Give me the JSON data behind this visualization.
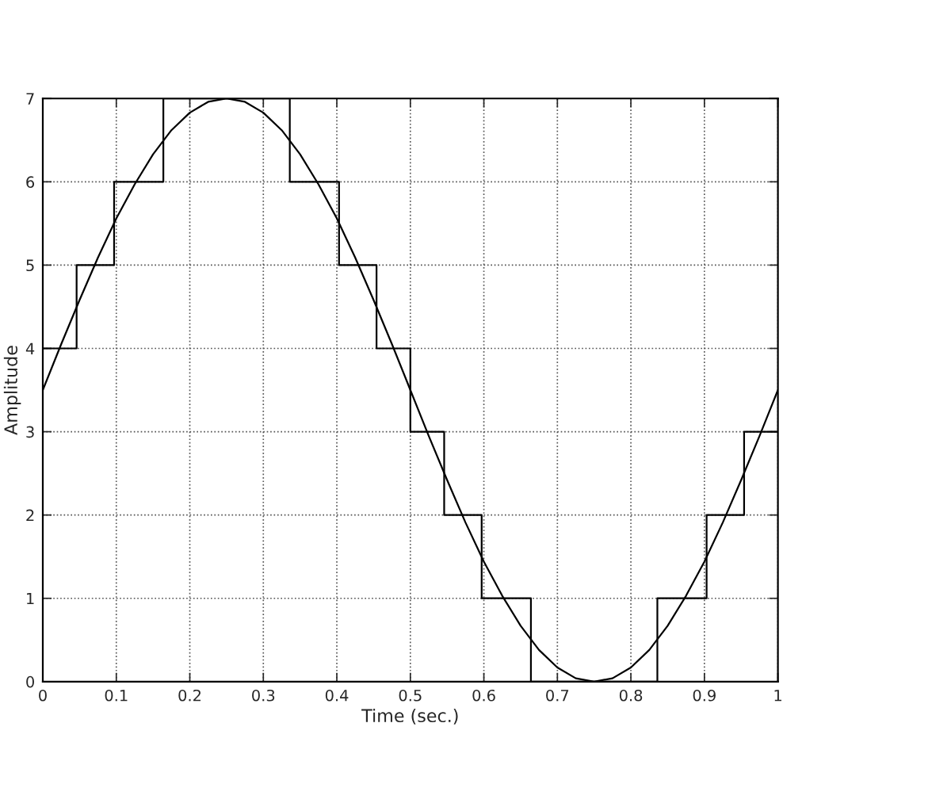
{
  "chart_data": {
    "type": "line",
    "xlabel": "Time (sec.)",
    "ylabel": "Amplitude",
    "xlim": [
      0,
      1
    ],
    "ylim": [
      0,
      7
    ],
    "xticks": [
      0,
      0.1,
      0.2,
      0.3,
      0.4,
      0.5,
      0.6,
      0.7,
      0.8,
      0.9,
      1
    ],
    "yticks": [
      0,
      1,
      2,
      3,
      4,
      5,
      6,
      7
    ],
    "grid": true,
    "marker": "none",
    "series": [
      {
        "color": "#000000",
        "x": [
          0,
          0.025,
          0.05,
          0.075,
          0.1,
          0.125,
          0.15,
          0.175,
          0.2,
          0.225,
          0.25,
          0.275,
          0.3,
          0.325,
          0.35,
          0.375,
          0.4,
          0.425,
          0.45,
          0.475,
          0.5,
          0.525,
          0.55,
          0.575,
          0.6,
          0.625,
          0.65,
          0.675,
          0.7,
          0.725,
          0.75,
          0.775,
          0.8,
          0.825,
          0.85,
          0.875,
          0.9,
          0.925,
          0.95,
          0.975,
          1
        ],
        "values": [
          3.5,
          4.05,
          4.58,
          5.09,
          5.56,
          5.97,
          6.33,
          6.62,
          6.83,
          6.96,
          7.0,
          6.96,
          6.83,
          6.62,
          6.33,
          5.97,
          5.56,
          5.09,
          4.58,
          4.05,
          3.5,
          2.95,
          2.42,
          1.91,
          1.44,
          1.03,
          0.67,
          0.38,
          0.17,
          0.04,
          0,
          0.04,
          0.17,
          0.38,
          0.67,
          1.03,
          1.44,
          1.91,
          2.42,
          2.95,
          3.5
        ]
      },
      {
        "type": "step",
        "color": "#000000",
        "x": [
          0,
          0.046,
          0.097,
          0.164,
          0.336,
          0.403,
          0.454,
          0.5,
          0.546,
          0.597,
          0.664,
          0.836,
          0.903,
          0.954,
          1
        ],
        "values": [
          4,
          5,
          6,
          7,
          6,
          5,
          4,
          3,
          2,
          1,
          0,
          1,
          2,
          3,
          3
        ]
      }
    ]
  }
}
